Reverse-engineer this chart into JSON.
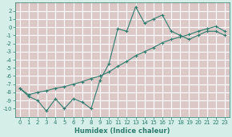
{
  "title": "",
  "xlabel": "Humidex (Indice chaleur)",
  "ylabel": "",
  "x_jagged": [
    0,
    1,
    2,
    3,
    4,
    5,
    6,
    7,
    8,
    9,
    10,
    11,
    12,
    13,
    14,
    15,
    16,
    17,
    18,
    19,
    20,
    21,
    22,
    23
  ],
  "y_jagged": [
    -7.5,
    -8.5,
    -9.0,
    -10.3,
    -8.8,
    -10.0,
    -8.8,
    -9.2,
    -10.0,
    -6.5,
    -4.5,
    -0.2,
    -0.5,
    2.5,
    0.5,
    1.0,
    1.5,
    -0.5,
    -1.0,
    -1.5,
    -1.0,
    -0.5,
    -0.5,
    -1.0
  ],
  "x_smooth": [
    0,
    1,
    2,
    3,
    4,
    5,
    6,
    7,
    8,
    9,
    10,
    11,
    12,
    13,
    14,
    15,
    16,
    17,
    18,
    19,
    20,
    21,
    22,
    23
  ],
  "y_smooth": [
    -7.5,
    -8.3,
    -8.0,
    -7.8,
    -7.5,
    -7.3,
    -7.0,
    -6.7,
    -6.3,
    -6.0,
    -5.5,
    -4.8,
    -4.2,
    -3.5,
    -3.0,
    -2.5,
    -1.9,
    -1.5,
    -1.2,
    -0.9,
    -0.5,
    -0.2,
    0.1,
    -0.5
  ],
  "line_color": "#2e7d6e",
  "bg_color": "#d5eee8",
  "grid_color_major": "#ffffff",
  "grid_color_minor": "#e8c8c8",
  "ylim": [
    -11,
    3
  ],
  "xlim": [
    -0.5,
    23.5
  ],
  "yticks": [
    2,
    1,
    0,
    -1,
    -2,
    -3,
    -4,
    -5,
    -6,
    -7,
    -8,
    -9,
    -10
  ],
  "xticks": [
    0,
    1,
    2,
    3,
    4,
    5,
    6,
    7,
    8,
    9,
    10,
    11,
    12,
    13,
    14,
    15,
    16,
    17,
    18,
    19,
    20,
    21,
    22,
    23
  ],
  "tick_color": "#2e7d6e",
  "label_fontsize": 6,
  "tick_fontsize": 5
}
